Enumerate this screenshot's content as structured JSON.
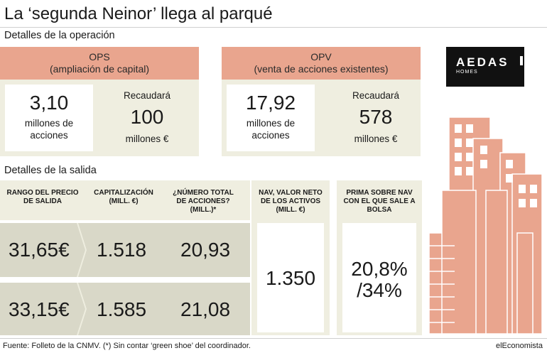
{
  "title": "La ‘segunda Neinor’ llega al parqué",
  "section_operation": "Detalles de la operación",
  "ops": {
    "head_line1": "OPS",
    "head_line2": "(ampliación de capital)",
    "value": "3,10",
    "value_unit_line1": "millones de",
    "value_unit_line2": "acciones",
    "collect_label": "Recaudará",
    "collect_value": "100",
    "collect_unit": "millones €"
  },
  "opv": {
    "head_line1": "OPV",
    "head_line2": "(venta de acciones existentes)",
    "value": "17,92",
    "value_unit_line1": "millones de",
    "value_unit_line2": "acciones",
    "collect_label": "Recaudará",
    "collect_value": "578",
    "collect_unit": "millones €"
  },
  "logo": {
    "name": "AEDAS",
    "sub": "HOMES"
  },
  "section_exit": "Detalles de la salida",
  "exit_headers": {
    "range": "RANGO DEL PRECIO DE SALIDA",
    "cap": "CAPITALIZACIÓN (MILL. €)",
    "shares": "¿NÚMERO TOTAL DE ACCIONES? (MILL.)*",
    "nav": "NAV, VALOR NETO DE LOS ACTIVOS (MILL. €)",
    "premium": "PRIMA SOBRE NAV CON EL QUE SALE A BOLSA"
  },
  "exit_rows": [
    {
      "range": "31,65€",
      "cap": "1.518",
      "shares": "20,93"
    },
    {
      "range": "33,15€",
      "cap": "1.585",
      "shares": "21,08"
    }
  ],
  "nav_value": "1.350",
  "premium_line1": "20,8%",
  "premium_line2": "/34%",
  "footer_source": "Fuente: Folleto de la CNMV. (*) Sin contar ‘green shoe’ del coordinador.",
  "footer_brand": "elEconomista",
  "colors": {
    "salmon": "#e9a58e",
    "cream": "#efeee0",
    "band": "#d9d8c8",
    "building": "#e9a58e"
  }
}
